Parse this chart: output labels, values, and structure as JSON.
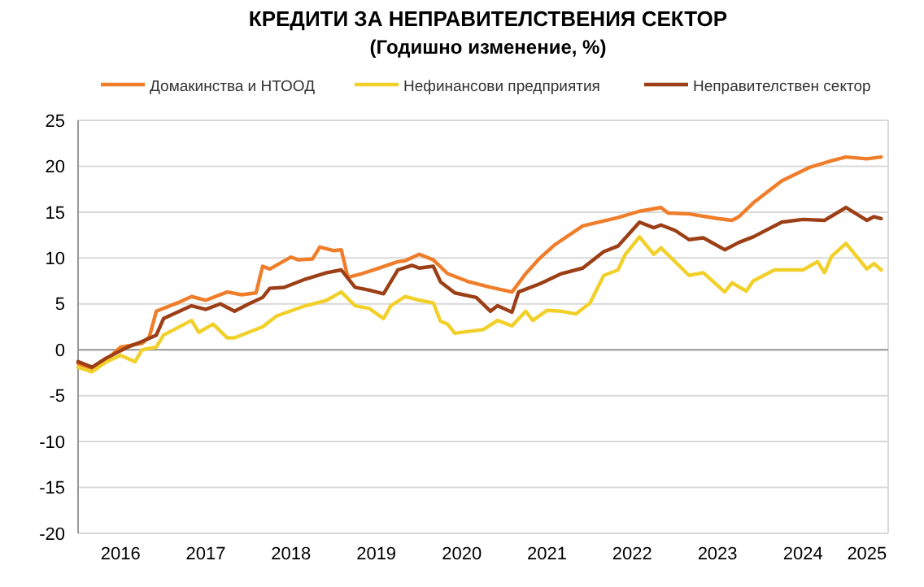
{
  "chart_data": {
    "type": "line",
    "title": "КРЕДИТИ ЗА НЕПРАВИТЕЛСТВЕНИЯ  СЕКТОР",
    "subtitle": "(Годишно  изменение, %)",
    "xlim": [
      "2016-01",
      "2025-07"
    ],
    "xticks": [
      {
        "value": "2016-07",
        "label": "2016"
      },
      {
        "value": "2017-07",
        "label": "2017"
      },
      {
        "value": "2018-07",
        "label": "2018"
      },
      {
        "value": "2019-07",
        "label": "2019"
      },
      {
        "value": "2020-07",
        "label": "2020"
      },
      {
        "value": "2021-07",
        "label": "2021"
      },
      {
        "value": "2022-07",
        "label": "2022"
      },
      {
        "value": "2023-07",
        "label": "2023"
      },
      {
        "value": "2024-07",
        "label": "2024"
      },
      {
        "value": "2025-04",
        "label": "2025"
      }
    ],
    "ylim": [
      -20,
      25
    ],
    "yticks": [
      -20,
      -15,
      -10,
      -5,
      0,
      5,
      10,
      15,
      20,
      25
    ],
    "grid": "y",
    "legend": "top",
    "line_style": "solid",
    "marker": "none",
    "series": [
      {
        "name": "Домакинства и НТООД",
        "color": "#f07d2a",
        "x": [
          "2016-01",
          "2016-03",
          "2016-05",
          "2016-07",
          "2016-10",
          "2016-11",
          "2016-12",
          "2017-03",
          "2017-05",
          "2017-07",
          "2017-10",
          "2017-12",
          "2018-02",
          "2018-03",
          "2018-04",
          "2018-07",
          "2018-08",
          "2018-10",
          "2018-11",
          "2019-01",
          "2019-02",
          "2019-03",
          "2019-05",
          "2019-07",
          "2019-10",
          "2019-11",
          "2020-01",
          "2020-03",
          "2020-05",
          "2020-08",
          "2020-11",
          "2021-02",
          "2021-04",
          "2021-06",
          "2021-08",
          "2021-12",
          "2022-05",
          "2022-08",
          "2022-11",
          "2022-12",
          "2023-03",
          "2023-07",
          "2023-09",
          "2023-10",
          "2023-12",
          "2024-04",
          "2024-08",
          "2024-11",
          "2025-01",
          "2025-04",
          "2025-06"
        ],
        "values": [
          -1.5,
          -2.2,
          -1.1,
          0.3,
          0.7,
          1.4,
          4.2,
          5.1,
          5.8,
          5.4,
          6.3,
          6.0,
          6.2,
          9.1,
          8.8,
          10.1,
          9.8,
          9.9,
          11.2,
          10.8,
          10.9,
          7.9,
          8.3,
          8.8,
          9.6,
          9.7,
          10.4,
          9.8,
          8.3,
          7.4,
          6.8,
          6.3,
          8.3,
          10.0,
          11.4,
          13.5,
          14.4,
          15.1,
          15.5,
          14.9,
          14.8,
          14.3,
          14.1,
          14.5,
          16.0,
          18.4,
          19.9,
          20.6,
          21.0,
          20.8,
          21.0
        ]
      },
      {
        "name": "Нефинансови  предприятия",
        "color": "#f2d02a",
        "x": [
          "2016-01",
          "2016-03",
          "2016-05",
          "2016-07",
          "2016-09",
          "2016-10",
          "2016-12",
          "2017-01",
          "2017-05",
          "2017-06",
          "2017-08",
          "2017-10",
          "2017-11",
          "2018-03",
          "2018-05",
          "2018-09",
          "2018-12",
          "2019-02",
          "2019-04",
          "2019-06",
          "2019-08",
          "2019-09",
          "2019-11",
          "2020-01",
          "2020-03",
          "2020-04",
          "2020-05",
          "2020-06",
          "2020-10",
          "2020-12",
          "2021-02",
          "2021-04",
          "2021-05",
          "2021-07",
          "2021-09",
          "2021-11",
          "2022-01",
          "2022-03",
          "2022-05",
          "2022-06",
          "2022-08",
          "2022-10",
          "2022-11",
          "2023-03",
          "2023-05",
          "2023-08",
          "2023-09",
          "2023-11",
          "2023-12",
          "2024-03",
          "2024-07",
          "2024-09",
          "2024-10",
          "2024-11",
          "2025-01",
          "2025-04",
          "2025-05",
          "2025-06"
        ],
        "values": [
          -1.9,
          -2.4,
          -1.3,
          -0.6,
          -1.3,
          0,
          0.3,
          1.6,
          3.2,
          1.9,
          2.8,
          1.3,
          1.3,
          2.5,
          3.7,
          4.8,
          5.4,
          6.3,
          4.8,
          4.5,
          3.4,
          4.8,
          5.8,
          5.4,
          5.1,
          3.1,
          2.8,
          1.8,
          2.2,
          3.2,
          2.6,
          4.2,
          3.2,
          4.3,
          4.2,
          3.9,
          5.1,
          8.1,
          8.7,
          10.4,
          12.3,
          10.4,
          11.1,
          8.1,
          8.4,
          6.3,
          7.3,
          6.4,
          7.5,
          8.7,
          8.7,
          9.6,
          8.4,
          10.2,
          11.6,
          8.8,
          9.4,
          8.7
        ]
      },
      {
        "name": "Неправителствен сектор",
        "color": "#9c3f16",
        "x": [
          "2016-01",
          "2016-03",
          "2016-05",
          "2016-08",
          "2016-10",
          "2016-12",
          "2017-01",
          "2017-05",
          "2017-07",
          "2017-09",
          "2017-11",
          "2018-01",
          "2018-03",
          "2018-04",
          "2018-06",
          "2018-09",
          "2018-12",
          "2019-02",
          "2019-04",
          "2019-06",
          "2019-08",
          "2019-10",
          "2019-12",
          "2020-01",
          "2020-03",
          "2020-04",
          "2020-06",
          "2020-09",
          "2020-11",
          "2020-12",
          "2021-02",
          "2021-03",
          "2021-06",
          "2021-09",
          "2021-12",
          "2022-03",
          "2022-05",
          "2022-08",
          "2022-10",
          "2022-11",
          "2023-01",
          "2023-03",
          "2023-05",
          "2023-08",
          "2023-10",
          "2023-12",
          "2024-04",
          "2024-07",
          "2024-10",
          "2025-01",
          "2025-04",
          "2025-05",
          "2025-06"
        ],
        "values": [
          -1.3,
          -1.9,
          -0.9,
          0.3,
          0.9,
          1.6,
          3.4,
          4.8,
          4.4,
          5.0,
          4.2,
          5.0,
          5.7,
          6.7,
          6.8,
          7.7,
          8.4,
          8.7,
          6.8,
          6.5,
          6.1,
          8.7,
          9.2,
          8.9,
          9.1,
          7.4,
          6.2,
          5.7,
          4.2,
          4.8,
          4.1,
          6.3,
          7.2,
          8.3,
          8.9,
          10.7,
          11.3,
          13.9,
          13.3,
          13.6,
          13.0,
          12.0,
          12.2,
          10.9,
          11.7,
          12.3,
          13.9,
          14.2,
          14.1,
          15.5,
          14.1,
          14.5,
          14.3
        ]
      }
    ]
  }
}
